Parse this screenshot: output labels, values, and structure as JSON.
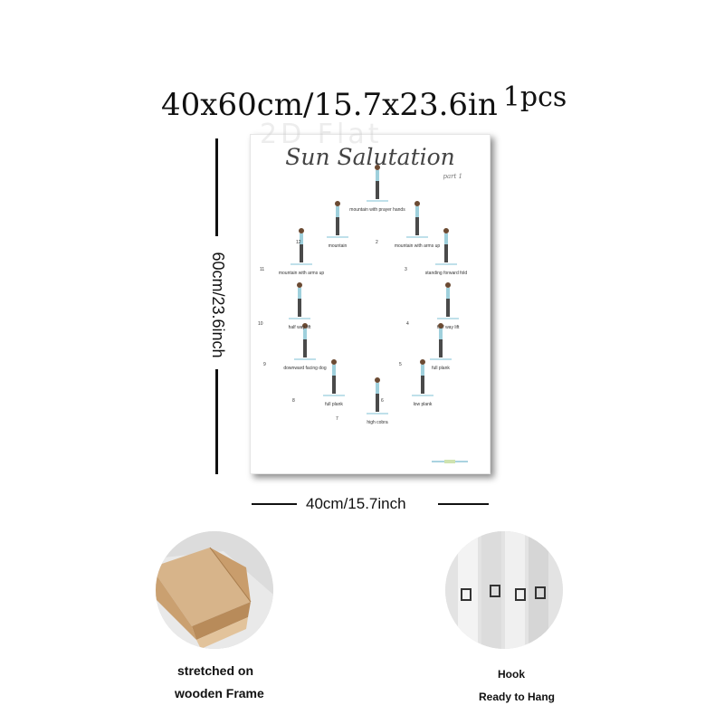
{
  "headline": {
    "size": "40x60cm/15.7x23.6in",
    "quantity": "1pcs"
  },
  "dimensions": {
    "height": "60cm/23.6inch",
    "width": "40cm/15.7inch"
  },
  "poster": {
    "watermark": "2D Flat",
    "title": "Sun Salutation",
    "subtitle": "part 1",
    "poses": [
      {
        "num": "1",
        "label": "mountain with prayer hands"
      },
      {
        "num": "2",
        "label": "mountain with arms up"
      },
      {
        "num": "3",
        "label": "standing forward fold"
      },
      {
        "num": "4",
        "label": "half way lift"
      },
      {
        "num": "5",
        "label": "full plank"
      },
      {
        "num": "6",
        "label": "low plank"
      },
      {
        "num": "7",
        "label": "high cobra"
      },
      {
        "num": "8",
        "label": "full plank"
      },
      {
        "num": "9",
        "label": "downward facing dog"
      },
      {
        "num": "10",
        "label": "half way lift"
      },
      {
        "num": "11",
        "label": "mountain with arms up"
      },
      {
        "num": "12",
        "label": "mountain"
      }
    ]
  },
  "features": [
    {
      "caption_line1": "stretched on",
      "caption_line2": "wooden Frame",
      "icon": "wooden-frame-photo"
    },
    {
      "caption_line1": "Hook",
      "caption_line2": "Ready to Hang",
      "icon": "hook-photo"
    }
  ]
}
